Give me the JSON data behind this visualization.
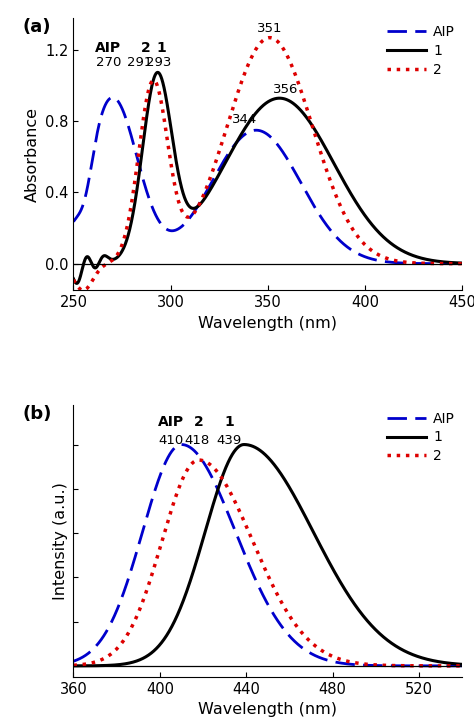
{
  "panel_a": {
    "title": "(a)",
    "xlabel": "Wavelength (nm)",
    "ylabel": "Absorbance",
    "xlim": [
      250,
      450
    ],
    "ylim": [
      -0.15,
      1.38
    ],
    "yticks": [
      0.0,
      0.4,
      0.8,
      1.2
    ],
    "xticks": [
      250,
      300,
      350,
      400,
      450
    ]
  },
  "panel_b": {
    "title": "(b)",
    "xlabel": "Wavelength (nm)",
    "ylabel": "Intensity (a.u.)",
    "xlim": [
      360,
      540
    ],
    "ylim": [
      -0.05,
      1.18
    ],
    "xticks": [
      360,
      400,
      440,
      480,
      520
    ]
  }
}
